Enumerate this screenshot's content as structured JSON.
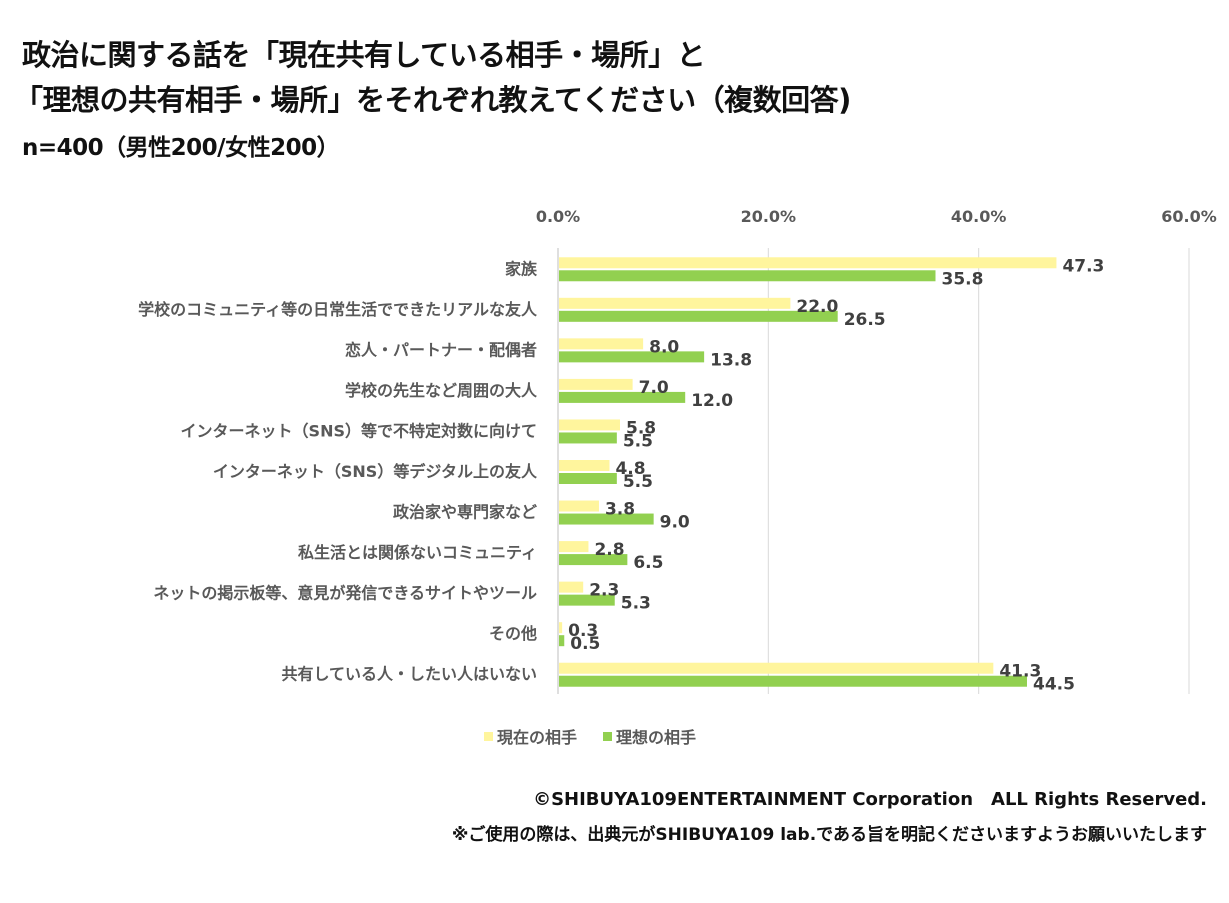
{
  "title": {
    "line1": "政治に関する話を「現在共有している相手・場所」と",
    "line2": "「理想の共有相手・場所」をそれぞれ教えてください（複数回答)",
    "sample": "n=400（男性200/女性200）"
  },
  "colors": {
    "current": "#FFF59D",
    "ideal": "#92D050",
    "grid": "#D9D9D9"
  },
  "chart_data": {
    "type": "bar",
    "orientation": "horizontal",
    "title": "政治に関する話を「現在共有している相手・場所」と「理想の共有相手・場所」をそれぞれ教えてください（複数回答)",
    "xlabel": "",
    "ylabel": "",
    "xlim": [
      0,
      60
    ],
    "x_ticks": [
      0,
      20,
      40,
      60
    ],
    "x_tick_labels": [
      "0.0%",
      "20.0%",
      "40.0%",
      "60.0%"
    ],
    "grid": true,
    "legend_position": "bottom",
    "categories": [
      "家族",
      "学校のコミュニティ等の日常生活でできたリアルな友人",
      "恋人・パートナー・配偶者",
      "学校の先生など周囲の大人",
      "インターネット（SNS）等で不特定対数に向けて",
      "インターネット（SNS）等デジタル上の友人",
      "政治家や専門家など",
      "私生活とは関係ないコミュニティ",
      "ネットの掲示板等、意見が発信できるサイトやツール",
      "その他",
      "共有している人・したい人はいない"
    ],
    "series": [
      {
        "name": "現在の相手",
        "values": [
          47.3,
          22.0,
          8.0,
          7.0,
          5.8,
          4.8,
          3.8,
          2.8,
          2.3,
          0.3,
          41.3
        ],
        "labels": [
          "47.3",
          "22.0",
          "8.0",
          "7.0",
          "5.8",
          "4.8",
          "3.8",
          "2.8",
          "2.3",
          "0.3",
          "41.3"
        ]
      },
      {
        "name": "理想の相手",
        "values": [
          35.8,
          26.5,
          13.8,
          12.0,
          5.5,
          5.5,
          9.0,
          6.5,
          5.3,
          0.5,
          44.5
        ],
        "labels": [
          "35.8",
          "26.5",
          "13.8",
          "12.0",
          "5.5",
          "5.5",
          "9.0",
          "6.5",
          "5.3",
          "0.5",
          "44.5"
        ]
      }
    ]
  },
  "legend": [
    {
      "label": "現在の相手"
    },
    {
      "label": "理想の相手"
    }
  ],
  "footer": {
    "copyright": "©SHIBUYA109ENTERTAINMENT Corporation　ALL Rights Reserved.",
    "notice": "※ご使用の際は、出典元がSHIBUYA109 lab.である旨を明記くださいますようお願いいたします"
  }
}
